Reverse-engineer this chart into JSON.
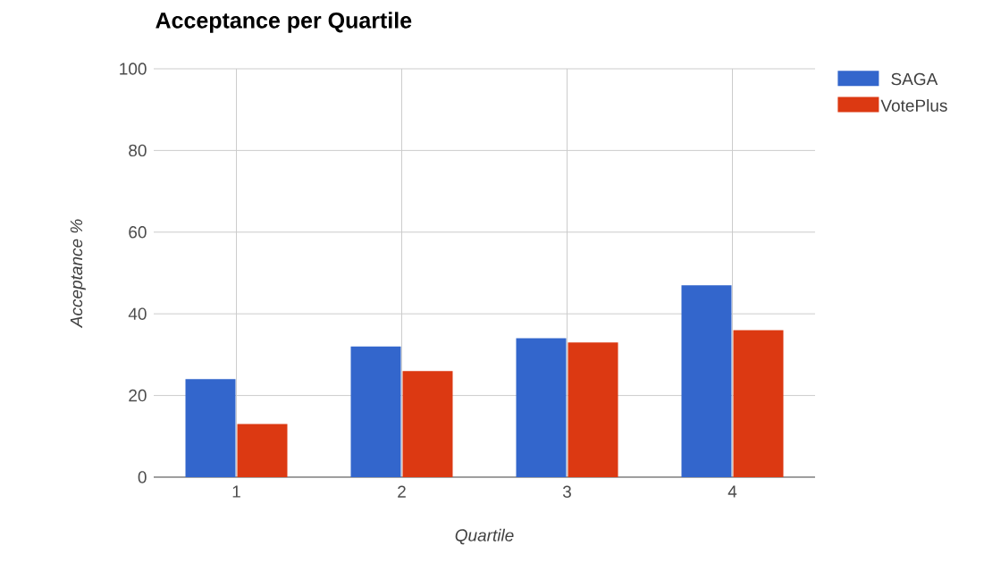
{
  "chart_data": {
    "type": "bar",
    "title": "Acceptance per Quartile",
    "xlabel": "Quartile",
    "ylabel": "Acceptance %",
    "categories": [
      "1",
      "2",
      "3",
      "4"
    ],
    "series": [
      {
        "name": "SAGA",
        "color": "#3366cc",
        "values": [
          24,
          32,
          34,
          47
        ]
      },
      {
        "name": "VotePlus",
        "color": "#dc3912",
        "values": [
          13,
          26,
          33,
          36
        ]
      }
    ],
    "ylim": [
      0,
      100
    ],
    "yticks": [
      0,
      20,
      40,
      60,
      80,
      100
    ],
    "grid": true,
    "legend": "top right"
  }
}
